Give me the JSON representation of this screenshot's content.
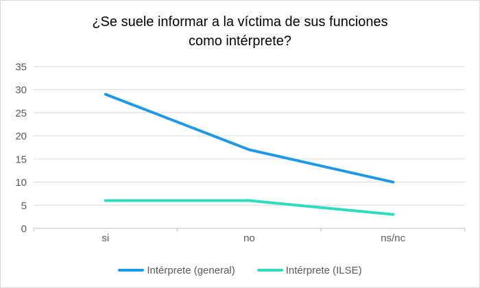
{
  "chart_data": {
    "type": "line",
    "title": "¿Se suele informar a la víctima de sus funciones como intérprete?",
    "title_lines": [
      "¿Se suele informar a la víctima de sus funciones",
      "como intérprete?"
    ],
    "categories": [
      "si",
      "no",
      "ns/nc"
    ],
    "series": [
      {
        "id": "general",
        "name": "Intérprete (general)",
        "color": "#1E99E8",
        "values": [
          29,
          17,
          10
        ]
      },
      {
        "id": "ilse",
        "name": "Intérprete (ILSE)",
        "color": "#2DDCBE",
        "values": [
          6,
          6,
          3
        ]
      }
    ],
    "xlabel": "",
    "ylabel": "",
    "ylim": [
      0,
      35
    ],
    "ytick_step": 5,
    "grid": "horizontal",
    "legend_position": "bottom",
    "colors": {
      "grid": "#D9D9D9",
      "axis": "#BFBFBF",
      "tick_text": "#595959",
      "title_text": "#000000",
      "background": "#FFFFFF",
      "border": "#D9D9D9"
    }
  }
}
